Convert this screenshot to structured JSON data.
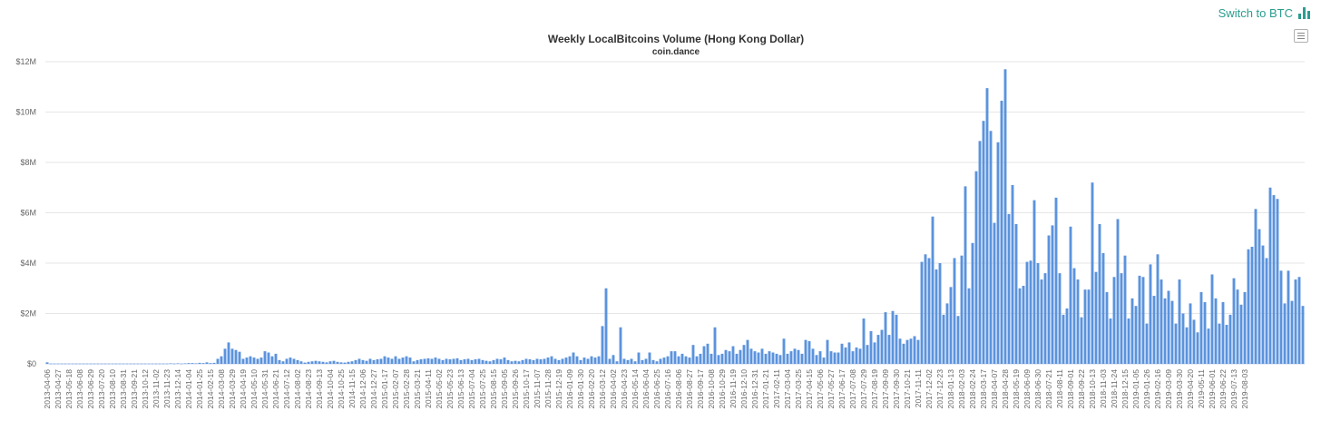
{
  "header": {
    "switch_label": "Switch to BTC",
    "switch_icon": "bar-chart-icon",
    "menu_icon": "hamburger-menu-icon",
    "accent_color": "#2a9d8f"
  },
  "chart_data": {
    "type": "bar",
    "title": "Weekly LocalBitcoins Volume (Hong Kong Dollar)",
    "subtitle": "coin.dance",
    "xlabel": "",
    "ylabel": "",
    "ylim": [
      0,
      12000000
    ],
    "yticks": [
      0,
      2000000,
      4000000,
      6000000,
      8000000,
      10000000,
      12000000
    ],
    "ytick_labels": [
      "$0",
      "$2M",
      "$4M",
      "$6M",
      "$8M",
      "$10M",
      "$12M"
    ],
    "grid": true,
    "bar_color": "#5b93dd",
    "start_week": "2013-04-06",
    "week_step_days": 7,
    "label_every": 3,
    "values": [
      60000,
      10000,
      10000,
      10000,
      10000,
      10000,
      10000,
      10000,
      10000,
      10000,
      10000,
      10000,
      10000,
      10000,
      10000,
      10000,
      10000,
      10000,
      10000,
      10000,
      10000,
      10000,
      10000,
      10000,
      10000,
      10000,
      10000,
      10000,
      10000,
      10000,
      10000,
      10000,
      10000,
      10000,
      20000,
      10000,
      20000,
      10000,
      20000,
      30000,
      30000,
      20000,
      40000,
      30000,
      60000,
      30000,
      40000,
      200000,
      300000,
      600000,
      850000,
      600000,
      550000,
      480000,
      200000,
      250000,
      300000,
      250000,
      200000,
      250000,
      500000,
      450000,
      300000,
      400000,
      150000,
      100000,
      200000,
      250000,
      200000,
      150000,
      100000,
      50000,
      80000,
      100000,
      120000,
      100000,
      80000,
      60000,
      100000,
      120000,
      80000,
      60000,
      50000,
      80000,
      100000,
      150000,
      200000,
      150000,
      120000,
      200000,
      150000,
      180000,
      200000,
      300000,
      250000,
      200000,
      300000,
      200000,
      250000,
      300000,
      250000,
      100000,
      150000,
      180000,
      200000,
      220000,
      200000,
      250000,
      200000,
      150000,
      200000,
      180000,
      200000,
      220000,
      150000,
      180000,
      200000,
      150000,
      180000,
      200000,
      150000,
      120000,
      100000,
      150000,
      200000,
      180000,
      250000,
      150000,
      100000,
      120000,
      100000,
      150000,
      200000,
      180000,
      150000,
      200000,
      180000,
      200000,
      250000,
      300000,
      200000,
      150000,
      200000,
      250000,
      300000,
      450000,
      300000,
      150000,
      250000,
      200000,
      300000,
      250000,
      300000,
      1500000,
      3000000,
      200000,
      350000,
      100000,
      1450000,
      200000,
      150000,
      200000,
      100000,
      450000,
      150000,
      200000,
      450000,
      150000,
      100000,
      200000,
      250000,
      300000,
      500000,
      500000,
      300000,
      400000,
      300000,
      250000,
      750000,
      300000,
      400000,
      700000,
      800000,
      400000,
      1450000,
      350000,
      400000,
      550000,
      500000,
      700000,
      400000,
      550000,
      750000,
      950000,
      600000,
      500000,
      450000,
      600000,
      400000,
      500000,
      450000,
      400000,
      350000,
      1000000,
      400000,
      500000,
      600000,
      550000,
      400000,
      950000,
      900000,
      600000,
      350000,
      500000,
      250000,
      950000,
      500000,
      450000,
      450000,
      800000,
      650000,
      850000,
      500000,
      650000,
      600000,
      1800000,
      750000,
      1300000,
      850000,
      1150000,
      1350000,
      2050000,
      1150000,
      2100000,
      1950000,
      1000000,
      800000,
      950000,
      1000000,
      1100000,
      950000,
      4050000,
      4350000,
      4200000,
      5850000,
      3750000,
      4000000,
      1950000,
      2400000,
      3050000,
      4200000,
      1900000,
      4300000,
      7050000,
      3000000,
      4800000,
      7650000,
      8850000,
      9650000,
      10950000,
      9250000,
      5600000,
      8800000,
      10450000,
      11700000,
      5950000,
      7100000,
      5550000,
      3000000,
      3100000,
      4050000,
      4100000,
      6500000,
      4000000,
      3350000,
      3600000,
      5100000,
      5500000,
      6600000,
      3600000,
      1950000,
      2200000,
      5450000,
      3800000,
      3350000,
      1850000,
      2950000,
      2950000,
      7200000,
      3650000,
      5550000,
      4400000,
      2850000,
      1800000,
      3450000,
      5750000,
      3600000,
      4300000,
      1800000,
      2600000,
      2300000,
      3500000,
      3450000,
      1600000,
      3950000,
      2700000,
      4350000,
      3350000,
      2600000,
      2900000,
      2500000,
      1600000,
      3350000,
      2000000,
      1450000,
      2400000,
      1750000,
      1250000,
      2850000,
      2450000,
      1400000,
      3550000,
      2600000,
      1600000,
      2450000,
      1550000,
      1950000,
      3400000,
      2950000,
      2350000,
      2850000,
      4550000,
      4650000,
      6150000,
      5350000,
      4700000,
      4200000,
      7000000,
      6700000,
      6550000,
      3700000,
      2400000,
      3700000,
      2500000,
      3350000,
      3450000,
      2300000
    ],
    "x_labels": [
      "2013-04-06",
      "2013-04-27",
      "2013-05-18",
      "2013-06-08",
      "2013-06-29",
      "2013-07-20",
      "2013-08-10",
      "2013-08-31",
      "2013-09-21",
      "2013-10-12",
      "2013-11-02",
      "2013-11-23",
      "2013-12-14",
      "2014-01-04",
      "2014-01-25",
      "2014-02-15",
      "2014-03-08",
      "2014-03-29",
      "2014-04-19",
      "2014-05-10",
      "2014-05-31",
      "2014-06-21",
      "2014-07-12",
      "2014-08-02",
      "2014-08-23",
      "2014-09-13",
      "2014-10-04",
      "2014-10-25",
      "2014-11-15",
      "2014-12-06",
      "2014-12-27",
      "2015-01-17",
      "2015-02-07",
      "2015-02-28",
      "2015-03-21",
      "2015-04-11",
      "2015-05-02",
      "2015-05-23",
      "2015-06-13",
      "2015-07-04",
      "2015-07-25",
      "2015-08-15",
      "2015-09-05",
      "2015-09-26",
      "2015-10-17",
      "2015-11-07",
      "2015-11-28",
      "2015-12-19",
      "2016-01-09",
      "2016-01-30",
      "2016-02-20",
      "2016-03-12",
      "2016-04-02",
      "2016-04-23",
      "2016-05-14",
      "2016-06-04",
      "2016-06-25",
      "2016-07-16",
      "2016-08-06",
      "2016-08-27",
      "2016-09-17",
      "2016-10-08",
      "2016-10-29",
      "2016-11-19",
      "2016-12-10",
      "2016-12-31",
      "2017-01-21",
      "2017-02-11",
      "2017-03-04",
      "2017-03-25",
      "2017-04-15",
      "2017-05-06",
      "2017-05-27",
      "2017-06-17",
      "2017-07-08",
      "2017-07-29",
      "2017-08-19",
      "2017-09-09",
      "2017-09-30",
      "2017-10-21",
      "2017-11-11",
      "2017-12-02",
      "2017-12-23",
      "2018-01-13",
      "2018-02-03",
      "2018-02-24",
      "2018-03-17",
      "2018-04-07",
      "2018-04-28",
      "2018-05-19",
      "2018-06-09",
      "2018-06-30",
      "2018-07-21",
      "2018-08-11",
      "2018-09-01",
      "2018-09-22",
      "2018-10-13",
      "2018-11-03",
      "2018-11-24",
      "2018-12-15",
      "2019-01-05",
      "2019-01-26",
      "2019-02-16",
      "2019-03-09",
      "2019-03-30",
      "2019-04-20",
      "2019-05-11",
      "2019-06-01",
      "2019-06-22",
      "2019-07-13",
      "2019-08-03"
    ]
  }
}
